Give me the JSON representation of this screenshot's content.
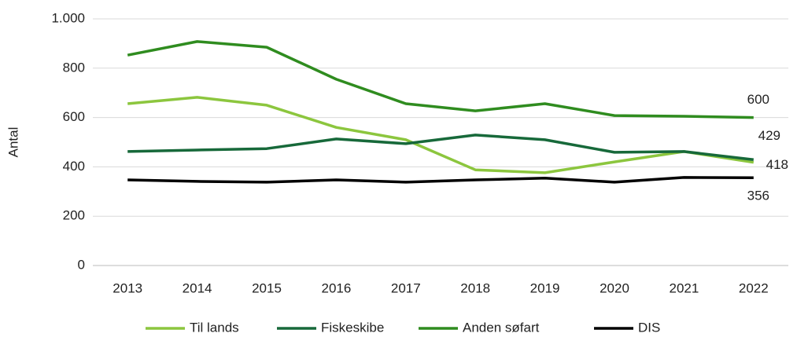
{
  "chart_data": {
    "type": "line",
    "y_label": "Antal",
    "categories": [
      "2013",
      "2014",
      "2015",
      "2016",
      "2017",
      "2018",
      "2019",
      "2020",
      "2021",
      "2022"
    ],
    "series": [
      {
        "name": "Til lands",
        "color": "#8cc63e",
        "values": [
          656,
          682,
          650,
          560,
          510,
          388,
          376,
          420,
          462,
          418
        ]
      },
      {
        "name": "Fiskeskibe",
        "color": "#17693a",
        "values": [
          462,
          468,
          474,
          513,
          494,
          529,
          510,
          459,
          462,
          429
        ]
      },
      {
        "name": "Anden søfart",
        "color": "#2f8c1f",
        "values": [
          853,
          908,
          885,
          755,
          656,
          627,
          656,
          608,
          605,
          600
        ]
      },
      {
        "name": "DIS",
        "color": "#000000",
        "values": [
          347,
          341,
          338,
          347,
          338,
          347,
          354,
          338,
          357,
          356
        ]
      }
    ],
    "ylim": [
      0,
      1000
    ],
    "yticks": [
      0,
      200,
      400,
      600,
      800,
      {
        "value": 1000,
        "label": "1.000"
      }
    ],
    "grid": true,
    "legend": "bottom"
  }
}
